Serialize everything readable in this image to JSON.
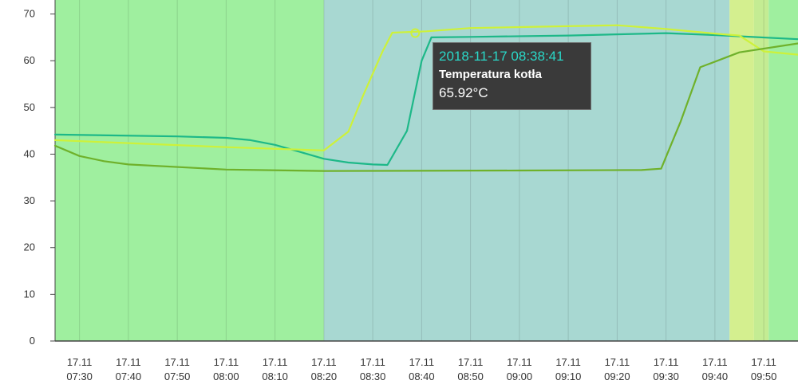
{
  "chart_data": {
    "type": "line",
    "ylim": [
      0,
      73
    ],
    "y_ticks": [
      0,
      10,
      20,
      30,
      40,
      50,
      60,
      70
    ],
    "x_range": [
      "07:25",
      "09:57"
    ],
    "x_ticks": [
      {
        "day": "17.11",
        "time": "07:30"
      },
      {
        "day": "17.11",
        "time": "07:40"
      },
      {
        "day": "17.11",
        "time": "07:50"
      },
      {
        "day": "17.11",
        "time": "08:00"
      },
      {
        "day": "17.11",
        "time": "08:10"
      },
      {
        "day": "17.11",
        "time": "08:20"
      },
      {
        "day": "17.11",
        "time": "08:30"
      },
      {
        "day": "17.11",
        "time": "08:40"
      },
      {
        "day": "17.11",
        "time": "08:50"
      },
      {
        "day": "17.11",
        "time": "09:00"
      },
      {
        "day": "17.11",
        "time": "09:10"
      },
      {
        "day": "17.11",
        "time": "09:20"
      },
      {
        "day": "17.11",
        "time": "09:30"
      },
      {
        "day": "17.11",
        "time": "09:40"
      },
      {
        "day": "17.11",
        "time": "09:50"
      }
    ],
    "grid": true,
    "bands": [
      {
        "from": "07:25",
        "to": "08:20",
        "color": "#9fef9f"
      },
      {
        "from": "08:20",
        "to": "09:43",
        "color": "#a8d8d2"
      },
      {
        "from": "09:43",
        "to": "09:48",
        "color": "#d4ef8f"
      },
      {
        "from": "09:48",
        "to": "09:51",
        "color": "#c4ec93"
      },
      {
        "from": "09:51",
        "to": "09:57",
        "color": "#9fef9f"
      }
    ],
    "series": [
      {
        "color": "#1db888",
        "points": [
          [
            "07:25",
            44.2
          ],
          [
            "07:50",
            43.8
          ],
          [
            "08:00",
            43.5
          ],
          [
            "08:05",
            43.0
          ],
          [
            "08:10",
            42.0
          ],
          [
            "08:15",
            40.5
          ],
          [
            "08:20",
            39.0
          ],
          [
            "08:25",
            38.2
          ],
          [
            "08:30",
            37.8
          ],
          [
            "08:33",
            37.7
          ],
          [
            "08:37",
            45.0
          ],
          [
            "08:40",
            60.0
          ],
          [
            "08:42",
            65.0
          ],
          [
            "08:50",
            65.1
          ],
          [
            "09:10",
            65.4
          ],
          [
            "09:30",
            65.9
          ],
          [
            "09:40",
            65.5
          ],
          [
            "09:57",
            64.6
          ]
        ]
      },
      {
        "color": "#cdf13a",
        "points": [
          [
            "07:25",
            43.0
          ],
          [
            "08:00",
            41.5
          ],
          [
            "08:20",
            40.8
          ],
          [
            "08:25",
            44.8
          ],
          [
            "08:28",
            52.5
          ],
          [
            "08:32",
            62.0
          ],
          [
            "08:34",
            66.0
          ],
          [
            "08:41",
            66.3
          ],
          [
            "08:50",
            67.0
          ],
          [
            "09:00",
            67.2
          ],
          [
            "09:20",
            67.6
          ],
          [
            "09:30",
            66.8
          ],
          [
            "09:40",
            65.8
          ],
          [
            "09:45",
            65.4
          ],
          [
            "09:50",
            62.0
          ],
          [
            "09:57",
            61.3
          ]
        ]
      },
      {
        "color": "#6fb12b",
        "points": [
          [
            "07:25",
            41.8
          ],
          [
            "07:30",
            39.6
          ],
          [
            "07:35",
            38.5
          ],
          [
            "07:40",
            37.8
          ],
          [
            "08:00",
            36.7
          ],
          [
            "08:20",
            36.4
          ],
          [
            "09:00",
            36.5
          ],
          [
            "09:25",
            36.6
          ],
          [
            "09:29",
            36.9
          ],
          [
            "09:33",
            47.0
          ],
          [
            "09:37",
            58.6
          ],
          [
            "09:45",
            61.8
          ],
          [
            "09:57",
            63.7
          ]
        ]
      }
    ],
    "highlight": {
      "series": 1,
      "time": "08:38:41",
      "value": 65.92
    }
  },
  "tooltip": {
    "timestamp": "2018-11-17 08:38:41",
    "series_name": "Temperatura kotła",
    "value": "65.92°C"
  }
}
